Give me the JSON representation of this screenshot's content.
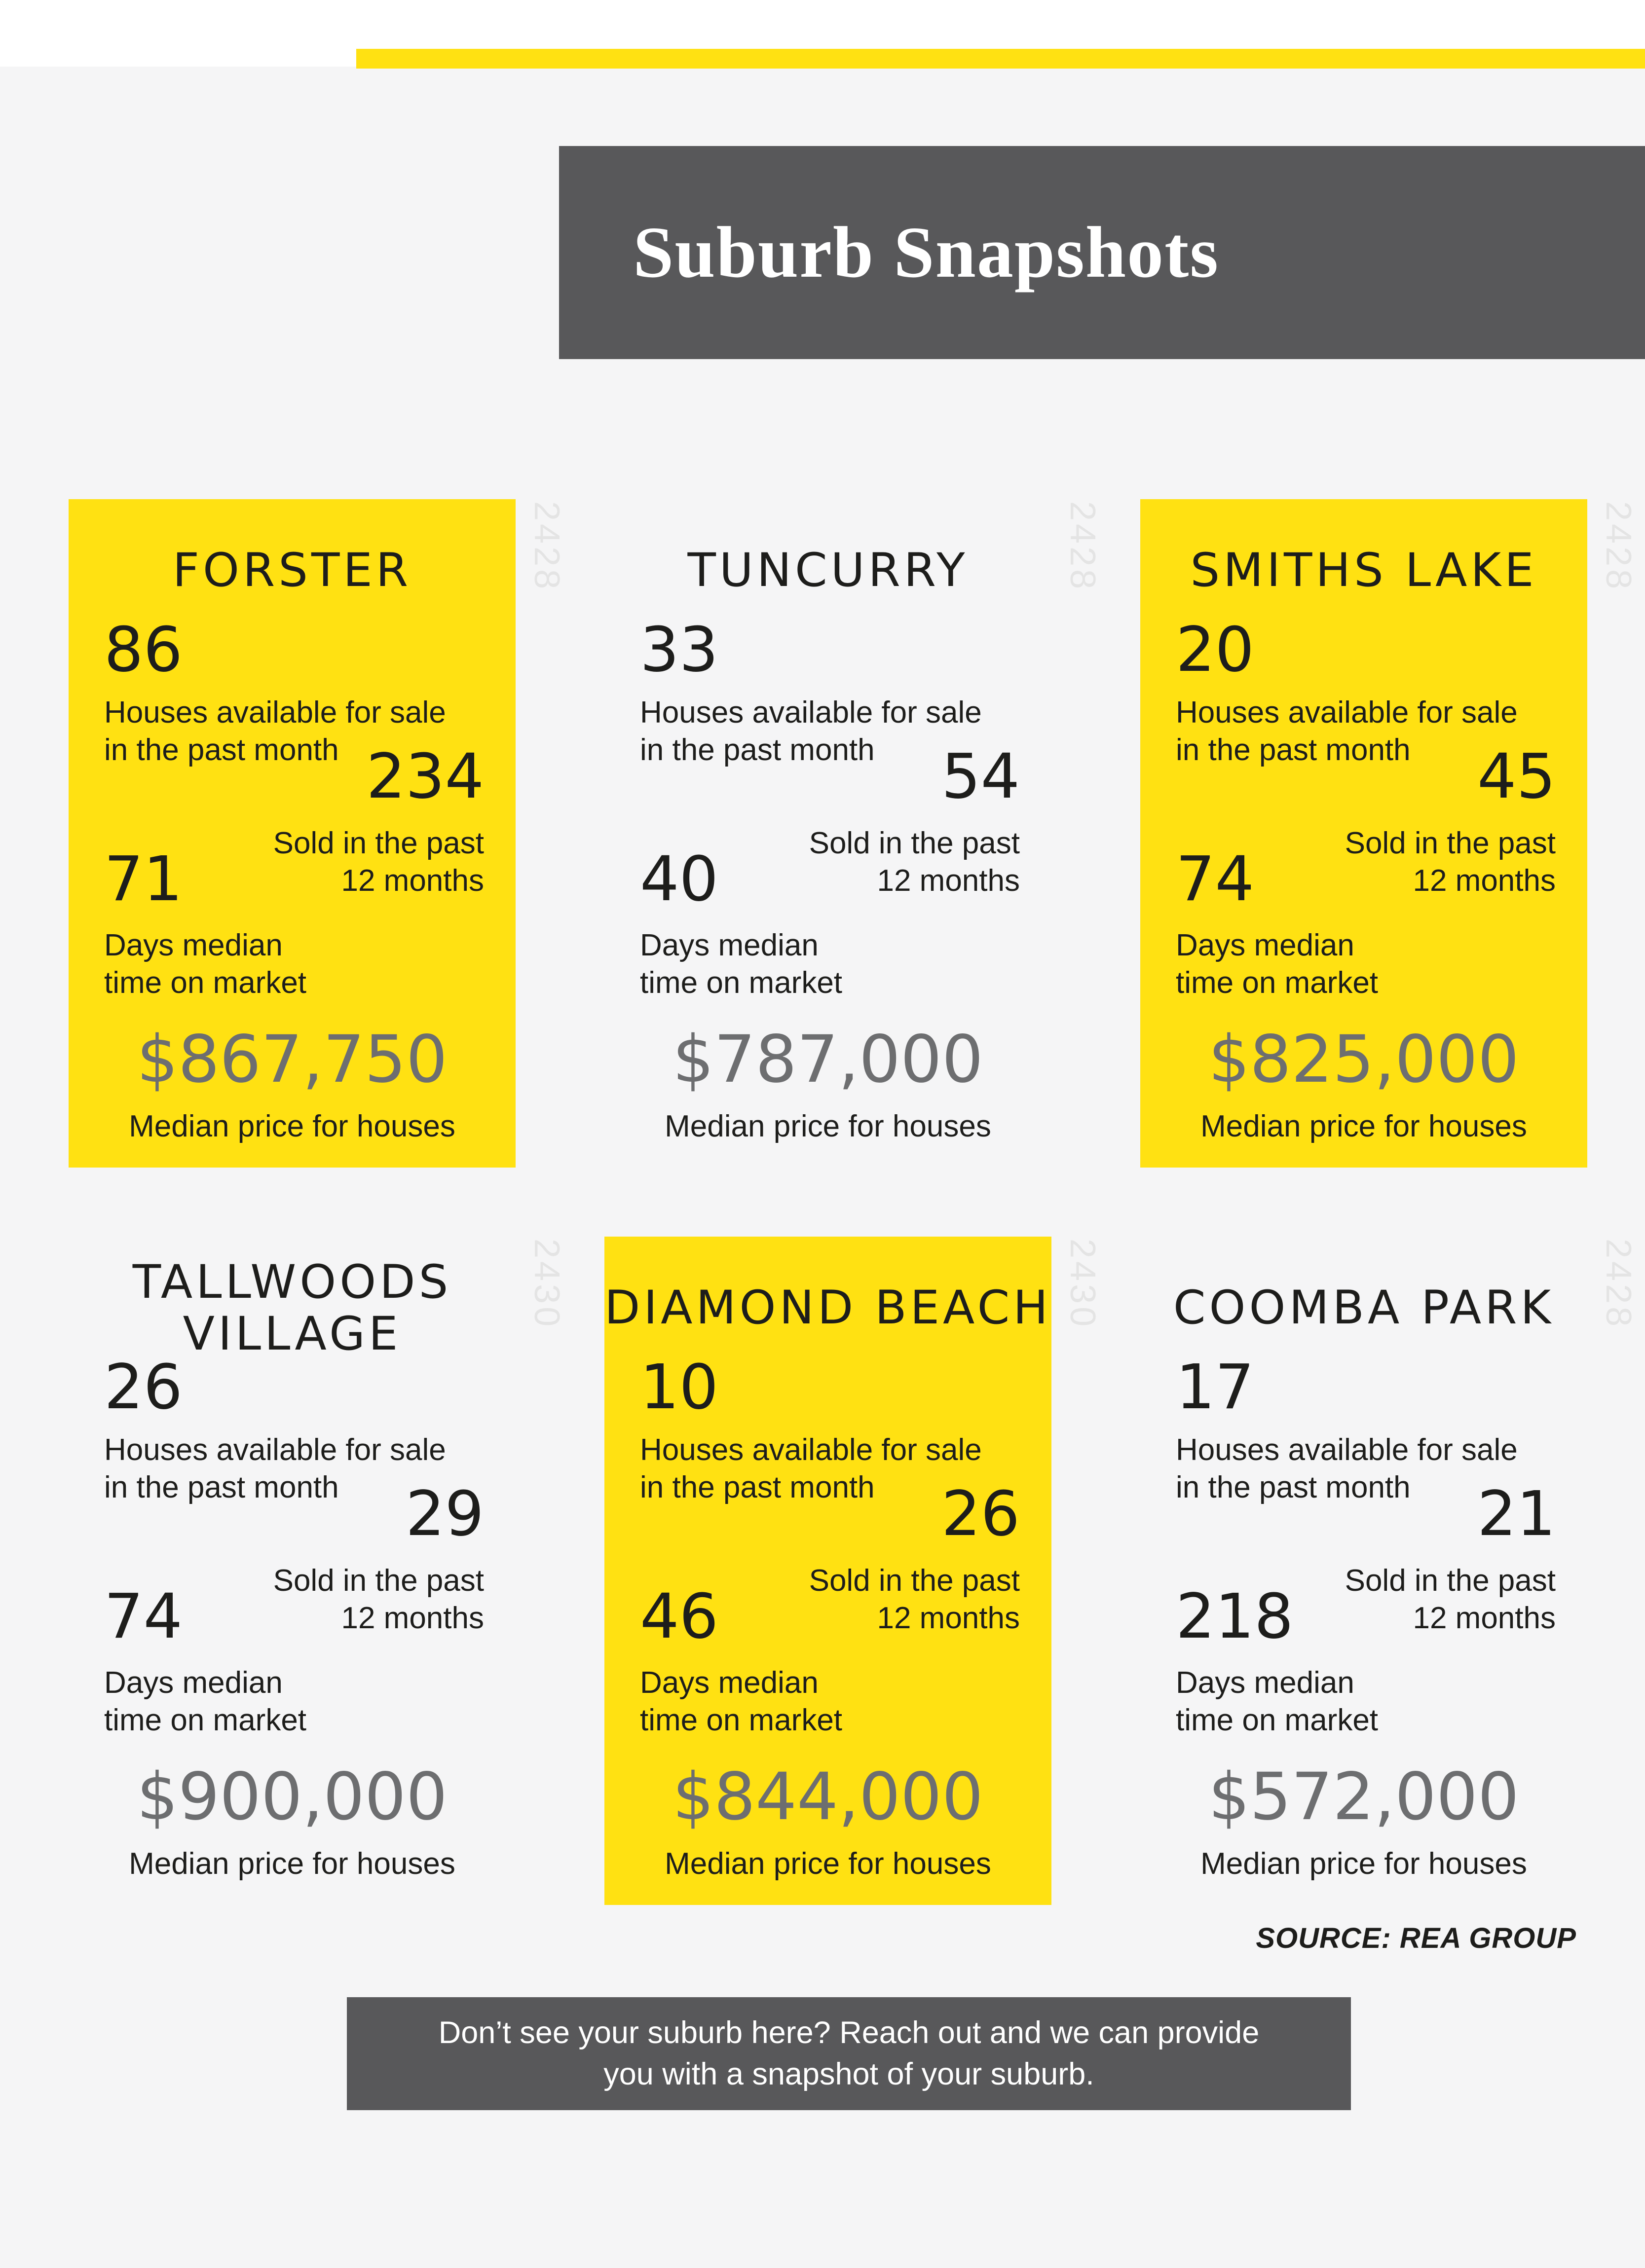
{
  "colors": {
    "accent_yellow": "#FFE112",
    "dark_gray": "#58585A",
    "page_background": "#F5F5F6",
    "price_gray": "#6D6E70",
    "postcode_gray": "#E4E4E4"
  },
  "header": {
    "title": "Suburb Snapshots"
  },
  "labels": {
    "available_1": "Houses available for sale",
    "available_2": "in the past month",
    "sold_1": "Sold in the past",
    "sold_2": "12 months",
    "days_1": "Days median",
    "days_2": "time on market",
    "price": "Median price for houses"
  },
  "cards": [
    {
      "name": "FORSTER",
      "postcode": "2428",
      "highlight": true,
      "available": "86",
      "sold": "234",
      "days": "71",
      "price": "$867,750"
    },
    {
      "name": "TUNCURRY",
      "postcode": "2428",
      "highlight": false,
      "available": "33",
      "sold": "54",
      "days": "40",
      "price": "$787,000"
    },
    {
      "name": "SMITHS LAKE",
      "postcode": "2428",
      "highlight": true,
      "available": "20",
      "sold": "45",
      "days": "74",
      "price": "$825,000"
    },
    {
      "name": "TALLWOODS VILLAGE",
      "postcode": "2430",
      "highlight": false,
      "available": "26",
      "sold": "29",
      "days": "74",
      "price": "$900,000"
    },
    {
      "name": "DIAMOND BEACH",
      "postcode": "2430",
      "highlight": true,
      "available": "10",
      "sold": "26",
      "days": "46",
      "price": "$844,000"
    },
    {
      "name": "COOMBA PARK",
      "postcode": "2428",
      "highlight": false,
      "available": "17",
      "sold": "21",
      "days": "218",
      "price": "$572,000"
    }
  ],
  "source": "SOURCE: REA GROUP",
  "footer": {
    "line1": "Don’t see your suburb here? Reach out and we can provide",
    "line2": "you with a snapshot of your suburb."
  }
}
